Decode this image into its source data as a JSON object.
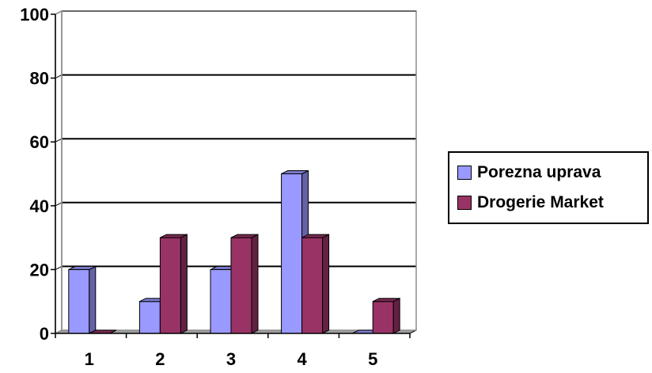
{
  "chart_data": {
    "type": "bar",
    "categories": [
      "1",
      "2",
      "3",
      "4",
      "5"
    ],
    "series": [
      {
        "name": "Porezna uprava",
        "values": [
          20,
          10,
          20,
          50,
          0
        ],
        "color": "#9999ff"
      },
      {
        "name": "Drogerie Market",
        "values": [
          0,
          30,
          30,
          30,
          10
        ],
        "color": "#993366"
      }
    ],
    "ylim": [
      0,
      100
    ],
    "yticks": [
      0,
      20,
      40,
      60,
      80,
      100
    ],
    "grid": true,
    "legend": "right",
    "style": "3d-clustered"
  }
}
